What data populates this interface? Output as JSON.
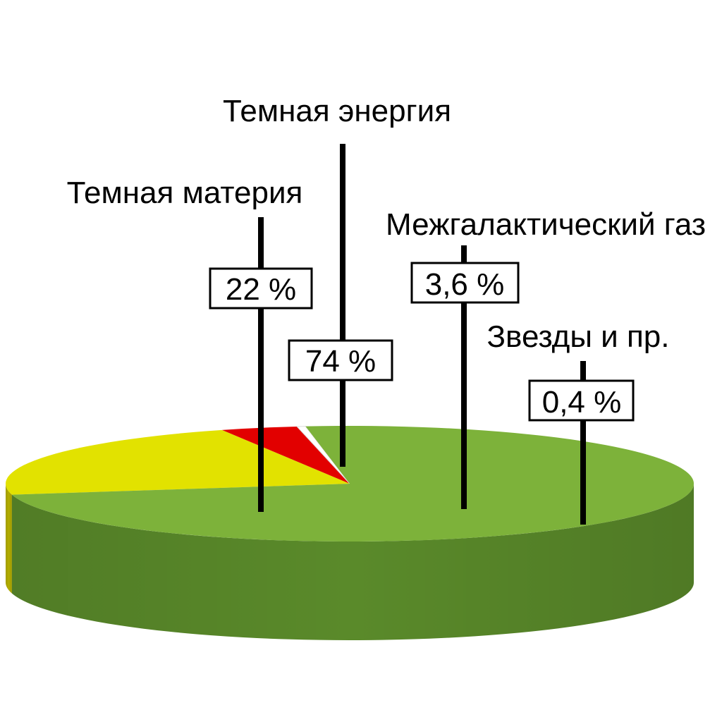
{
  "chart_data": {
    "type": "pie",
    "style": "3d",
    "slices": [
      {
        "label": "Темная энергия",
        "value": 74,
        "value_label": "74 %",
        "color": "#7db23a",
        "side_color": "#5a8a2a"
      },
      {
        "label": "Темная материя",
        "value": 22,
        "value_label": "22 %",
        "color": "#e2e200",
        "side_color": "#b3ad00"
      },
      {
        "label": "Межгалактический газ",
        "value": 3.6,
        "value_label": "3,6 %",
        "color": "#e20000",
        "side_color": "#b00000"
      },
      {
        "label": "Звезды и пр.",
        "value": 0.4,
        "value_label": "0,4 %",
        "color": "#ffffff",
        "side_color": "#cccccc"
      }
    ]
  }
}
